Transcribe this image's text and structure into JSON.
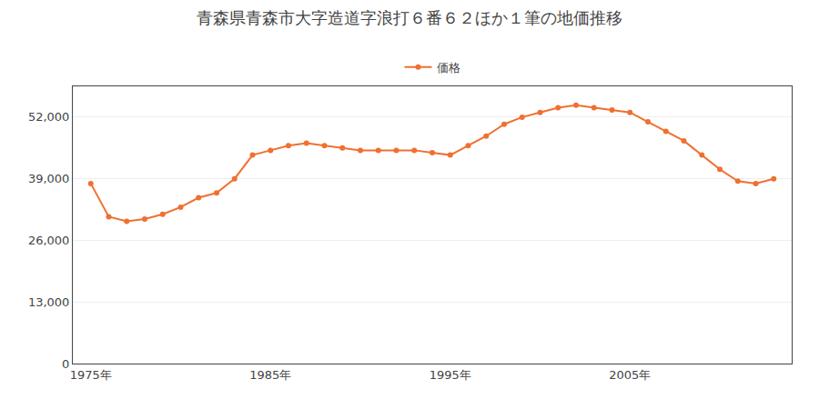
{
  "chart_data": {
    "type": "line",
    "title": "青森県青森市大字造道字浪打６番６２ほか１筆の地価推移",
    "x": [
      1975,
      1976,
      1977,
      1978,
      1979,
      1980,
      1981,
      1982,
      1983,
      1984,
      1985,
      1986,
      1987,
      1988,
      1989,
      1990,
      1991,
      1992,
      1993,
      1994,
      1995,
      1996,
      1997,
      1998,
      1999,
      2000,
      2001,
      2002,
      2003,
      2004,
      2005,
      2006,
      2007,
      2008,
      2009,
      2010,
      2011,
      2012,
      2013
    ],
    "series": [
      {
        "name": "価格",
        "color": "#f07030",
        "marker": "circle",
        "line_style": "solid",
        "values": [
          38000,
          31000,
          30000,
          30500,
          31500,
          33000,
          35000,
          36000,
          39000,
          44000,
          45000,
          46000,
          46500,
          46000,
          45500,
          45000,
          45000,
          45000,
          45000,
          44500,
          44000,
          46000,
          48000,
          50500,
          52000,
          53000,
          54000,
          54500,
          54000,
          53500,
          53000,
          51000,
          49000,
          47000,
          44000,
          41000,
          38500,
          38000,
          39000
        ]
      }
    ],
    "xlim": [
      1974,
      2014
    ],
    "xticks": [
      {
        "value": 1975,
        "label": "1975年"
      },
      {
        "value": 1985,
        "label": "1985年"
      },
      {
        "value": 1995,
        "label": "1995年"
      },
      {
        "value": 2005,
        "label": "2005年"
      }
    ],
    "ylim": [
      0,
      58500
    ],
    "yticks": [
      0,
      {
        "value": 13000,
        "label": "13,000"
      },
      {
        "value": 26000,
        "label": "26,000"
      },
      {
        "value": 39000,
        "label": "39,000"
      },
      {
        "value": 52000,
        "label": "52,000"
      }
    ],
    "grid": "y",
    "legend": "top"
  }
}
